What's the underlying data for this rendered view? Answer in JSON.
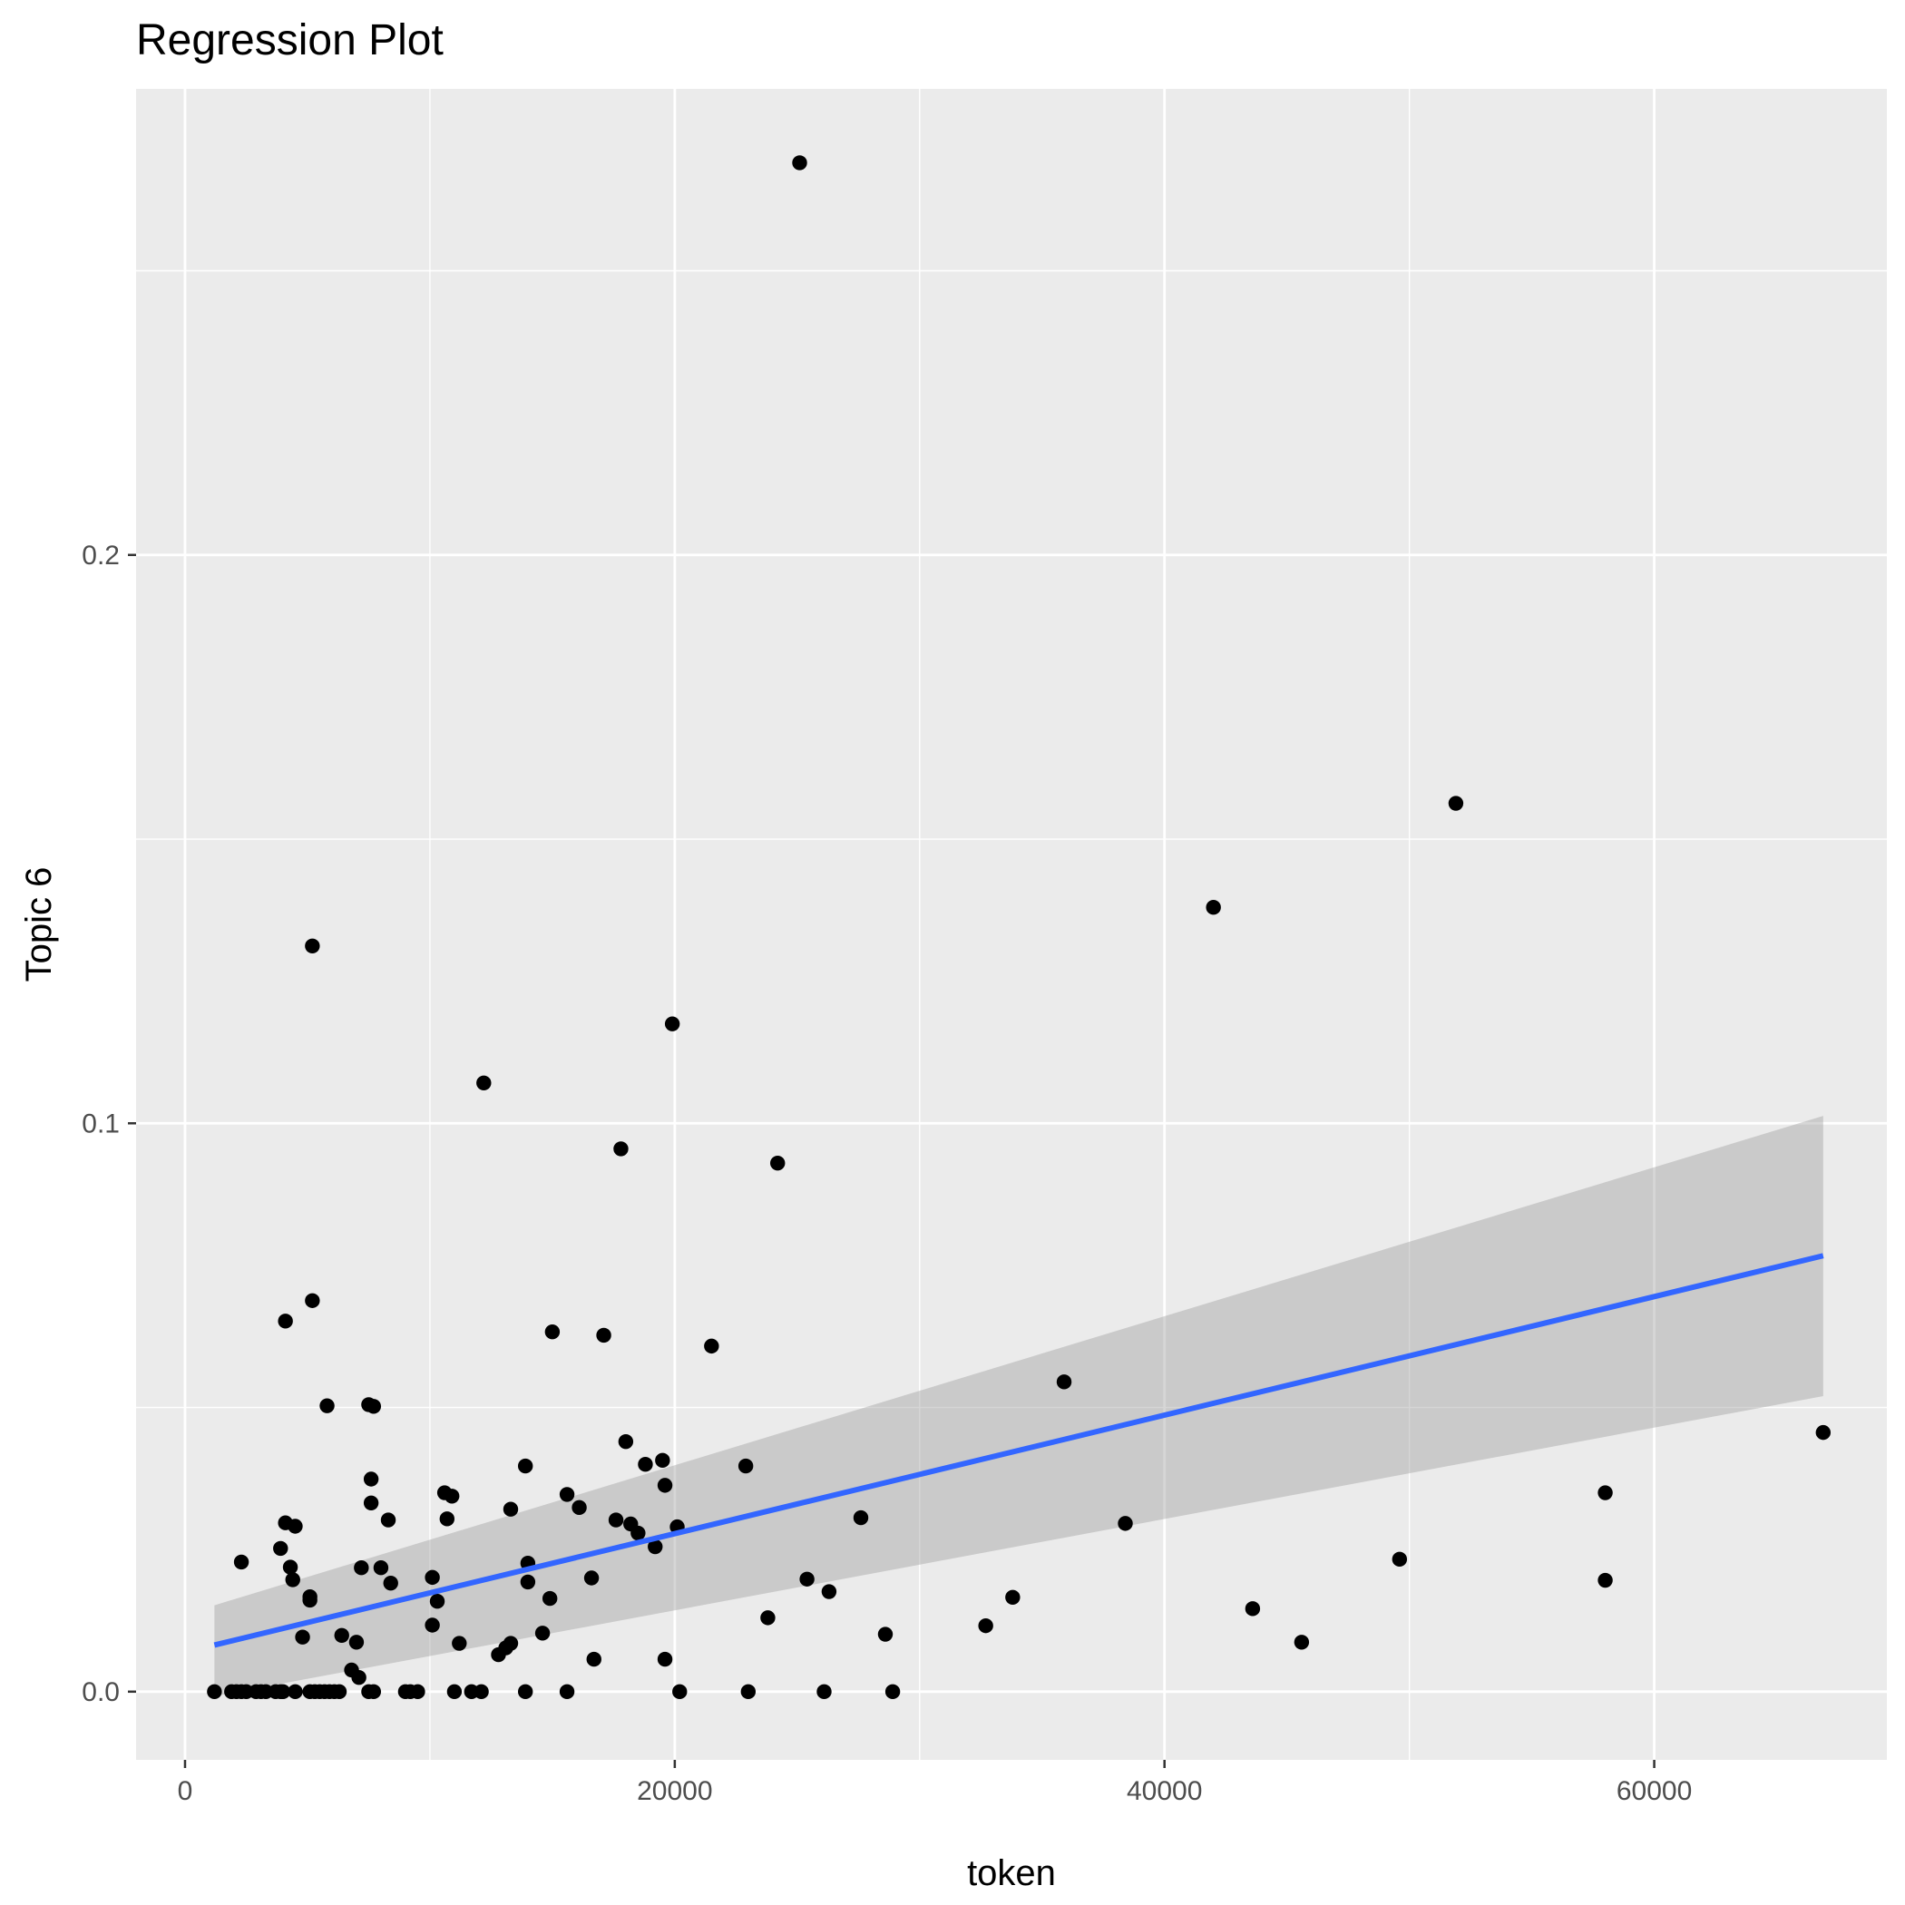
{
  "chart_data": {
    "type": "scatter",
    "title": "Regression Plot",
    "xlabel": "token",
    "ylabel": "Topic 6",
    "xlim": [
      -2000,
      69500
    ],
    "ylim": [
      -0.012,
      0.282
    ],
    "x_ticks": [
      0,
      20000,
      40000,
      60000
    ],
    "x_tick_labels": [
      "0",
      "20000",
      "40000",
      "60000"
    ],
    "y_ticks": [
      0.0,
      0.1,
      0.2
    ],
    "y_tick_labels": [
      "0.0",
      "0.1",
      "0.2"
    ],
    "x_minor": [
      10000,
      30000,
      50000
    ],
    "y_minor": [
      0.05,
      0.15,
      0.25
    ],
    "grid": true,
    "legend": "none",
    "points": [
      [
        1200,
        0
      ],
      [
        1900,
        0
      ],
      [
        2100,
        0
      ],
      [
        2300,
        0
      ],
      [
        2500,
        0
      ],
      [
        2900,
        0
      ],
      [
        3100,
        0
      ],
      [
        3300,
        0
      ],
      [
        3700,
        0
      ],
      [
        3900,
        0
      ],
      [
        4000,
        0
      ],
      [
        4500,
        0
      ],
      [
        5100,
        0
      ],
      [
        5300,
        0
      ],
      [
        5500,
        0
      ],
      [
        5700,
        0
      ],
      [
        5900,
        0
      ],
      [
        6100,
        0
      ],
      [
        6300,
        0
      ],
      [
        7500,
        0
      ],
      [
        7700,
        0
      ],
      [
        9000,
        0
      ],
      [
        9200,
        0
      ],
      [
        9500,
        0
      ],
      [
        11000,
        0
      ],
      [
        11700,
        0
      ],
      [
        12100,
        0
      ],
      [
        13900,
        0
      ],
      [
        15600,
        0
      ],
      [
        20200,
        0
      ],
      [
        23000,
        0
      ],
      [
        26100,
        0
      ],
      [
        28900,
        0
      ],
      [
        2300,
        0.0228
      ],
      [
        3900,
        0.0252
      ],
      [
        4100,
        0.0297
      ],
      [
        4300,
        0.0219
      ],
      [
        4400,
        0.0197
      ],
      [
        4500,
        0.0291
      ],
      [
        4800,
        0.0096
      ],
      [
        5100,
        0.0167
      ],
      [
        5100,
        0.0161
      ],
      [
        5200,
        0.0688
      ],
      [
        4100,
        0.0652
      ],
      [
        5200,
        0.1312
      ],
      [
        5800,
        0.0503
      ],
      [
        6400,
        0.0099
      ],
      [
        6800,
        0.0038
      ],
      [
        7100,
        0.0025
      ],
      [
        7000,
        0.0087
      ],
      [
        7200,
        0.0218
      ],
      [
        7500,
        0.0505
      ],
      [
        7700,
        0.0502
      ],
      [
        7600,
        0.0374
      ],
      [
        7600,
        0.0332
      ],
      [
        8000,
        0.0218
      ],
      [
        8300,
        0.0302
      ],
      [
        8400,
        0.0191
      ],
      [
        10100,
        0.0201
      ],
      [
        10300,
        0.0159
      ],
      [
        10100,
        0.0117
      ],
      [
        10600,
        0.035
      ],
      [
        10700,
        0.0304
      ],
      [
        10900,
        0.0344
      ],
      [
        11200,
        0.0085
      ],
      [
        12200,
        0.1071
      ],
      [
        12800,
        0.0065
      ],
      [
        13100,
        0.0077
      ],
      [
        13300,
        0.0085
      ],
      [
        13300,
        0.0321
      ],
      [
        13900,
        0.0397
      ],
      [
        14000,
        0.0226
      ],
      [
        14000,
        0.0193
      ],
      [
        14600,
        0.0103
      ],
      [
        14900,
        0.0164
      ],
      [
        15000,
        0.0633
      ],
      [
        15600,
        0.0347
      ],
      [
        16100,
        0.0324
      ],
      [
        16600,
        0.02
      ],
      [
        16700,
        0.0057
      ],
      [
        17100,
        0.0627
      ],
      [
        17600,
        0.0302
      ],
      [
        17800,
        0.0955
      ],
      [
        18000,
        0.044
      ],
      [
        18200,
        0.0295
      ],
      [
        18500,
        0.0279
      ],
      [
        18800,
        0.04
      ],
      [
        19200,
        0.0255
      ],
      [
        19500,
        0.0407
      ],
      [
        19600,
        0.0363
      ],
      [
        19600,
        0.0057
      ],
      [
        19900,
        0.1175
      ],
      [
        20100,
        0.029
      ],
      [
        21500,
        0.0608
      ],
      [
        22900,
        0.0397
      ],
      [
        23800,
        0.013
      ],
      [
        24200,
        0.093
      ],
      [
        25100,
        0.269
      ],
      [
        25400,
        0.0198
      ],
      [
        26300,
        0.0176
      ],
      [
        27600,
        0.0306
      ],
      [
        28600,
        0.0101
      ],
      [
        32700,
        0.0116
      ],
      [
        33800,
        0.0166
      ],
      [
        35900,
        0.0545
      ],
      [
        38400,
        0.0296
      ],
      [
        41999,
        0.138
      ],
      [
        43600,
        0.0146
      ],
      [
        45600,
        0.0087
      ],
      [
        49600,
        0.0233
      ],
      [
        51900,
        0.1563
      ],
      [
        58000,
        0.035
      ],
      [
        58000,
        0.0196
      ],
      [
        66900,
        0.0456
      ]
    ],
    "regression": {
      "x": [
        1200,
        66900
      ],
      "y": [
        0.0082,
        0.0767
      ],
      "ci_lower": [
        -0.0008,
        0.052
      ],
      "ci_upper": [
        0.0152,
        0.1013
      ],
      "line_color": "#3366ff",
      "band_color": "#999999"
    },
    "colors": {
      "panel_background": "#ebebeb",
      "grid": "#ffffff",
      "point": "#000000"
    }
  }
}
